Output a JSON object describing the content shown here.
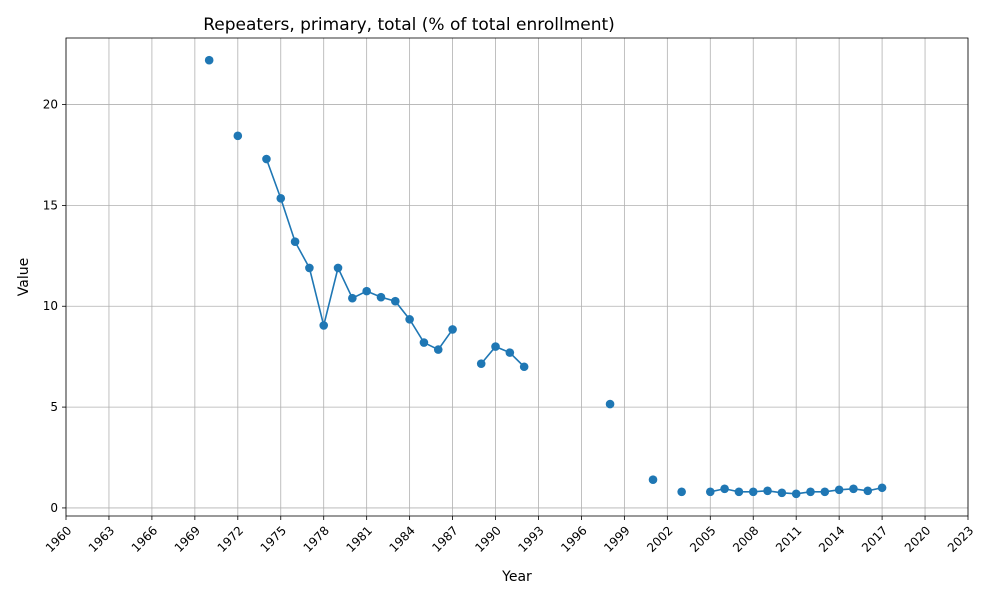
{
  "chart_data": {
    "type": "line",
    "title": "Repeaters, primary, total (% of total enrollment)",
    "xlabel": "Year",
    "ylabel": "Value",
    "xlim": [
      1960,
      2023
    ],
    "ylim": [
      -0.4,
      23.3
    ],
    "xticks": [
      1960,
      1963,
      1966,
      1969,
      1972,
      1975,
      1978,
      1981,
      1984,
      1987,
      1990,
      1993,
      1996,
      1999,
      2002,
      2005,
      2008,
      2011,
      2014,
      2017,
      2020,
      2023
    ],
    "yticks": [
      0,
      5,
      10,
      15,
      20
    ],
    "grid": true,
    "color": "#1f77b4",
    "series": [
      {
        "points": [
          [
            1970,
            22.2
          ],
          [
            1972,
            18.45
          ],
          [
            1974,
            17.3
          ],
          [
            1975,
            15.35
          ],
          [
            1976,
            13.2
          ],
          [
            1977,
            11.9
          ],
          [
            1978,
            9.05
          ],
          [
            1979,
            11.9
          ],
          [
            1980,
            10.4
          ],
          [
            1981,
            10.75
          ],
          [
            1982,
            10.45
          ],
          [
            1983,
            10.25
          ],
          [
            1984,
            9.35
          ],
          [
            1985,
            8.2
          ],
          [
            1986,
            7.85
          ],
          [
            1987,
            8.85
          ],
          [
            1989,
            7.15
          ],
          [
            1990,
            8.0
          ],
          [
            1991,
            7.7
          ],
          [
            1992,
            7.0
          ],
          [
            1998,
            5.15
          ],
          [
            2001,
            1.4
          ],
          [
            2003,
            0.8
          ],
          [
            2005,
            0.8
          ],
          [
            2006,
            0.95
          ],
          [
            2007,
            0.8
          ],
          [
            2008,
            0.8
          ],
          [
            2009,
            0.85
          ],
          [
            2010,
            0.75
          ],
          [
            2011,
            0.7
          ],
          [
            2012,
            0.8
          ],
          [
            2013,
            0.8
          ],
          [
            2014,
            0.9
          ],
          [
            2015,
            0.95
          ],
          [
            2016,
            0.85
          ],
          [
            2017,
            1.0
          ]
        ]
      }
    ]
  }
}
